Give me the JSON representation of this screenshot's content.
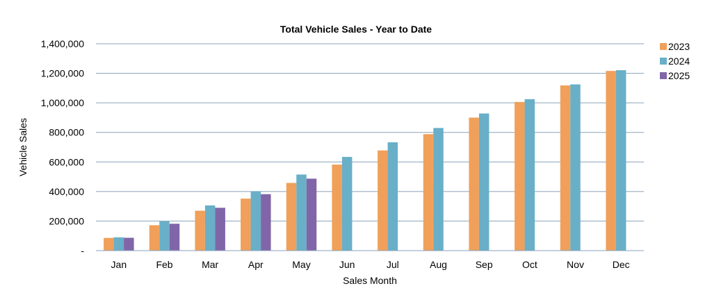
{
  "chart_data": {
    "type": "bar",
    "title": "Total Vehicle Sales - Year to Date",
    "xlabel": "Sales Month",
    "ylabel": "Vehicle Sales",
    "ylim": [
      0,
      1400000
    ],
    "ytick_values": [
      0,
      200000,
      400000,
      600000,
      800000,
      1000000,
      1200000,
      1400000
    ],
    "ytick_labels": [
      "-",
      "200,000",
      "400,000",
      "600,000",
      "800,000",
      "1,000,000",
      "1,200,000",
      "1,400,000"
    ],
    "grid": true,
    "legend_position": "right",
    "categories": [
      "Jan",
      "Feb",
      "Mar",
      "Apr",
      "May",
      "Jun",
      "Jul",
      "Aug",
      "Sep",
      "Oct",
      "Nov",
      "Dec"
    ],
    "series": [
      {
        "name": "2023",
        "color": "#f0a05a",
        "values": [
          86000,
          172000,
          270000,
          352000,
          458000,
          582000,
          678000,
          788000,
          900000,
          1006000,
          1118000,
          1216000
        ]
      },
      {
        "name": "2024",
        "color": "#69afc8",
        "values": [
          90000,
          198000,
          306000,
          402000,
          515000,
          634000,
          733000,
          830000,
          928000,
          1025000,
          1125000,
          1221000
        ]
      },
      {
        "name": "2025",
        "color": "#8066a8",
        "values": [
          87000,
          182000,
          290000,
          382000,
          487000,
          null,
          null,
          null,
          null,
          null,
          null,
          null
        ]
      }
    ]
  }
}
